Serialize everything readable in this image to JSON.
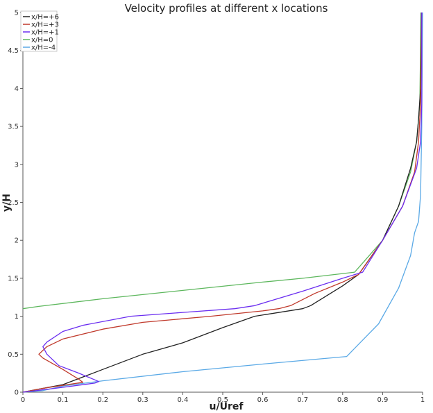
{
  "chart_data": {
    "type": "line",
    "title": "Velocity profiles at different x locations",
    "xlabel": "u/Uref",
    "ylabel": "y/H",
    "xlim": [
      0,
      1
    ],
    "ylim": [
      0,
      5
    ],
    "xticks": [
      "0",
      "0.1",
      "0.2",
      "0.3",
      "0.4",
      "0.5",
      "0.6",
      "0.7",
      "0.8",
      "0.9",
      "1"
    ],
    "yticks": [
      "0",
      "0.5",
      "1",
      "1.5",
      "2",
      "2.5",
      "3",
      "3.5",
      "4",
      "4.5",
      "5"
    ],
    "grid": false,
    "legend_position": "top-left",
    "series": [
      {
        "name": "x/H=+6",
        "color": "#222222",
        "points": [
          [
            0,
            0
          ],
          [
            0.03,
            0.03
          ],
          [
            0.1,
            0.1
          ],
          [
            0.2,
            0.3
          ],
          [
            0.3,
            0.5
          ],
          [
            0.4,
            0.65
          ],
          [
            0.5,
            0.85
          ],
          [
            0.58,
            1.0
          ],
          [
            0.7,
            1.1
          ],
          [
            0.72,
            1.14
          ],
          [
            0.8,
            1.4
          ],
          [
            0.84,
            1.55
          ],
          [
            0.9,
            2.0
          ],
          [
            0.94,
            2.45
          ],
          [
            0.97,
            2.95
          ],
          [
            0.985,
            3.3
          ],
          [
            0.99,
            3.6
          ],
          [
            0.995,
            4.0
          ],
          [
            0.997,
            5.0
          ]
        ]
      },
      {
        "name": "x/H=+3",
        "color": "#c0392b",
        "points": [
          [
            0,
            0
          ],
          [
            0.05,
            0.05
          ],
          [
            0.15,
            0.13
          ],
          [
            0.14,
            0.17
          ],
          [
            0.1,
            0.3
          ],
          [
            0.05,
            0.45
          ],
          [
            0.04,
            0.5
          ],
          [
            0.06,
            0.6
          ],
          [
            0.1,
            0.7
          ],
          [
            0.2,
            0.83
          ],
          [
            0.3,
            0.92
          ],
          [
            0.47,
            1.0
          ],
          [
            0.6,
            1.07
          ],
          [
            0.64,
            1.1
          ],
          [
            0.67,
            1.14
          ],
          [
            0.73,
            1.3
          ],
          [
            0.8,
            1.45
          ],
          [
            0.84,
            1.55
          ],
          [
            0.9,
            2.0
          ],
          [
            0.95,
            2.45
          ],
          [
            0.98,
            2.9
          ],
          [
            0.99,
            3.3
          ],
          [
            0.995,
            3.8
          ],
          [
            0.998,
            5.0
          ]
        ]
      },
      {
        "name": "x/H=+1",
        "color": "#6a2df0",
        "points": [
          [
            0,
            0
          ],
          [
            0.08,
            0.05
          ],
          [
            0.18,
            0.12
          ],
          [
            0.19,
            0.14
          ],
          [
            0.14,
            0.25
          ],
          [
            0.09,
            0.35
          ],
          [
            0.06,
            0.5
          ],
          [
            0.05,
            0.6
          ],
          [
            0.06,
            0.66
          ],
          [
            0.1,
            0.8
          ],
          [
            0.15,
            0.88
          ],
          [
            0.27,
            1.0
          ],
          [
            0.4,
            1.05
          ],
          [
            0.53,
            1.1
          ],
          [
            0.58,
            1.14
          ],
          [
            0.7,
            1.33
          ],
          [
            0.8,
            1.5
          ],
          [
            0.85,
            1.58
          ],
          [
            0.9,
            2.0
          ],
          [
            0.95,
            2.45
          ],
          [
            0.985,
            2.95
          ],
          [
            0.995,
            3.3
          ],
          [
            0.998,
            3.8
          ],
          [
            0.998,
            5.0
          ]
        ]
      },
      {
        "name": "x/H=0",
        "color": "#5db75d",
        "points": [
          [
            0,
            1.1
          ],
          [
            0.04,
            1.13
          ],
          [
            0.2,
            1.23
          ],
          [
            0.4,
            1.34
          ],
          [
            0.6,
            1.45
          ],
          [
            0.7,
            1.5
          ],
          [
            0.83,
            1.58
          ],
          [
            0.9,
            2.0
          ],
          [
            0.94,
            2.45
          ],
          [
            0.97,
            2.9
          ],
          [
            0.985,
            3.3
          ],
          [
            0.993,
            3.8
          ],
          [
            0.996,
            5.0
          ]
        ]
      },
      {
        "name": "x/H=-4",
        "color": "#5aa9e6",
        "points": [
          [
            0,
            0
          ],
          [
            0.05,
            0.02
          ],
          [
            0.1,
            0.08
          ],
          [
            0.2,
            0.15
          ],
          [
            0.4,
            0.27
          ],
          [
            0.6,
            0.37
          ],
          [
            0.81,
            0.47
          ],
          [
            0.89,
            0.9
          ],
          [
            0.94,
            1.37
          ],
          [
            0.97,
            1.8
          ],
          [
            0.98,
            2.1
          ],
          [
            0.99,
            2.25
          ],
          [
            0.995,
            2.6
          ],
          [
            0.998,
            3.5
          ],
          [
            1.0,
            5.0
          ]
        ]
      }
    ]
  }
}
